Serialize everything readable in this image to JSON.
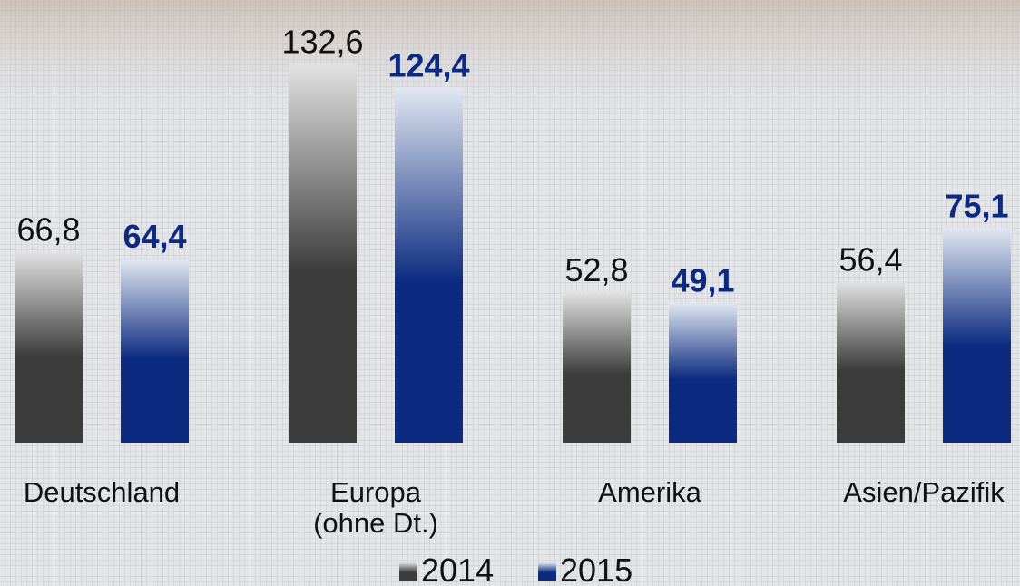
{
  "chart_data": {
    "type": "bar",
    "categories": [
      "Deutschland",
      "Europa\n(ohne Dt.)",
      "Amerika",
      "Asien/Pazifik"
    ],
    "series": [
      {
        "name": "2014",
        "color": "#3c3c3c",
        "values": [
          66.8,
          132.6,
          52.8,
          56.4
        ],
        "value_labels": [
          "66,8",
          "132,6",
          "52,8",
          "56,4"
        ]
      },
      {
        "name": "2015",
        "color": "#0b2a80",
        "values": [
          64.4,
          124.4,
          49.1,
          75.1
        ],
        "value_labels": [
          "64,4",
          "124,4",
          "49,1",
          "75,1"
        ]
      }
    ],
    "ylim": [
      0,
      155
    ],
    "legend": "bottom"
  }
}
